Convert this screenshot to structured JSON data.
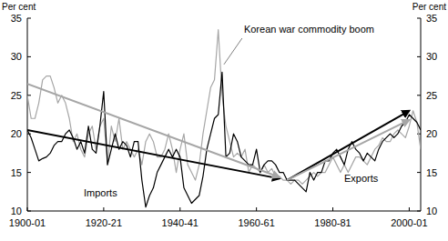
{
  "chart_data": {
    "type": "line",
    "y_label": "Per cent",
    "x": [
      1900,
      1901,
      1902,
      1903,
      1904,
      1905,
      1906,
      1907,
      1908,
      1909,
      1910,
      1911,
      1912,
      1913,
      1914,
      1915,
      1916,
      1917,
      1918,
      1919,
      1920,
      1921,
      1922,
      1923,
      1924,
      1925,
      1926,
      1927,
      1928,
      1929,
      1930,
      1931,
      1932,
      1933,
      1934,
      1935,
      1936,
      1937,
      1938,
      1939,
      1940,
      1941,
      1942,
      1943,
      1944,
      1945,
      1946,
      1947,
      1948,
      1949,
      1950,
      1951,
      1952,
      1953,
      1954,
      1955,
      1956,
      1957,
      1958,
      1959,
      1960,
      1961,
      1962,
      1963,
      1964,
      1965,
      1966,
      1967,
      1968,
      1969,
      1970,
      1971,
      1972,
      1973,
      1974,
      1975,
      1976,
      1977,
      1978,
      1979,
      1980,
      1981,
      1982,
      1983,
      1984,
      1985,
      1986,
      1987,
      1988,
      1989,
      1990,
      1991,
      1992,
      1993,
      1994,
      1995,
      1996,
      1997,
      1998,
      1999,
      2000,
      2001,
      2002,
      2003
    ],
    "series": [
      {
        "name": "Imports",
        "color": "#000000",
        "values": [
          20.5,
          19.5,
          18,
          16.5,
          16.8,
          17,
          17.5,
          18.5,
          19,
          19,
          20,
          20.5,
          19.5,
          18,
          19,
          17.5,
          21,
          18,
          17.5,
          21,
          25.5,
          16,
          18,
          20,
          18,
          19,
          18.5,
          17,
          19,
          19,
          14,
          10.5,
          12,
          13,
          15,
          16,
          17,
          18,
          17,
          18,
          17,
          13,
          12,
          11,
          11.5,
          12,
          14.5,
          18,
          20,
          22,
          22.5,
          28,
          17,
          17.5,
          20,
          19,
          17,
          16.5,
          16,
          16,
          18,
          15,
          16,
          16.5,
          16.5,
          16,
          15,
          15,
          14,
          14,
          14,
          13.5,
          13,
          12.5,
          15,
          14,
          15,
          15,
          16.5,
          16.5,
          17.5,
          18,
          17,
          16,
          18,
          19,
          18,
          17.5,
          16.5,
          17.5,
          17,
          16.5,
          18,
          19,
          19.5,
          20,
          19.5,
          20,
          21,
          21.5,
          22.5,
          22,
          21.5,
          20.5
        ]
      },
      {
        "name": "Exports",
        "color": "#a6a6a6",
        "values": [
          25,
          22,
          22,
          24,
          27,
          27.5,
          27.5,
          26,
          24,
          25,
          24,
          22,
          19,
          20,
          18,
          17,
          20,
          21,
          18,
          21,
          22,
          16,
          21,
          19,
          22,
          18,
          19,
          18,
          17,
          18,
          16,
          19,
          20,
          19,
          17,
          17,
          18,
          20,
          18,
          15,
          18,
          20,
          16,
          15,
          14,
          16,
          20,
          23,
          26,
          27,
          33.5,
          25,
          21,
          19,
          17,
          17.5,
          17,
          18,
          15,
          16,
          15.5,
          15,
          16,
          15,
          15.5,
          14.5,
          14.5,
          14,
          14,
          13.5,
          14,
          14,
          13.5,
          14,
          14.5,
          15,
          14.5,
          15,
          15,
          16,
          17,
          16,
          15,
          16,
          15,
          16,
          17,
          17,
          16.5,
          16,
          17,
          18,
          18.5,
          19.5,
          19,
          19,
          20,
          20.5,
          20,
          19.5,
          21,
          23,
          21.5,
          18
        ]
      }
    ],
    "trends": [
      {
        "color": "#000000",
        "x": [
          1900,
          1966
        ],
        "values": [
          20.5,
          14.2
        ]
      },
      {
        "color": "#000000",
        "x": [
          1968,
          2000
        ],
        "values": [
          14,
          23
        ]
      },
      {
        "color": "#a6a6a6",
        "x": [
          1900,
          1966
        ],
        "values": [
          26.5,
          14.4
        ]
      },
      {
        "color": "#a6a6a6",
        "x": [
          1968,
          2000
        ],
        "values": [
          14,
          21.8
        ]
      }
    ],
    "annotations": [
      {
        "text": "Korean war commodity boom",
        "x": 1951,
        "y": 29
      }
    ],
    "xlim": [
      1900,
      2003
    ],
    "xticks": [
      {
        "value": 1900,
        "label": "1900-01"
      },
      {
        "value": 1920,
        "label": "1920-21"
      },
      {
        "value": 1940,
        "label": "1940-41"
      },
      {
        "value": 1960,
        "label": "1960-61"
      },
      {
        "value": 1980,
        "label": "1980-81"
      },
      {
        "value": 2000,
        "label": "2000-01"
      }
    ],
    "ylim": [
      10,
      35
    ],
    "yticks": [
      10,
      15,
      20,
      25,
      30,
      35
    ],
    "grid": false
  }
}
